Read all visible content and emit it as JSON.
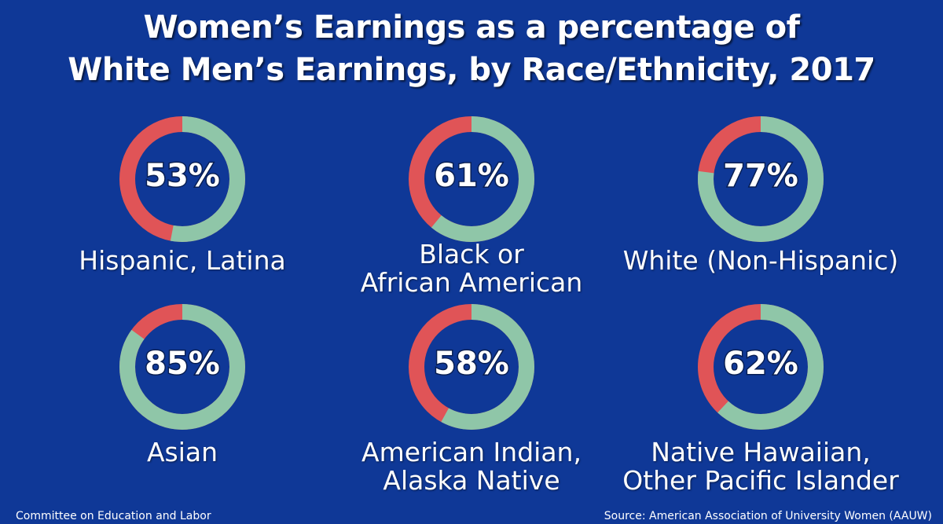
{
  "title": {
    "line1": "Women’s Earnings as a percentage of",
    "line2": "White Men’s Earnings, by Race/Ethnicity, 2017"
  },
  "colors": {
    "background": "#0f3897",
    "earned": "#8fc6a8",
    "gap": "#e05457"
  },
  "chart_data": [
    {
      "type": "pie",
      "style": "donut",
      "group": "Hispanic, Latina",
      "label_lines": [
        "Hispanic, Latina"
      ],
      "value": 53,
      "display": "53%"
    },
    {
      "type": "pie",
      "style": "donut",
      "group": "Black or African American",
      "label_lines": [
        "Black or",
        "African American"
      ],
      "value": 61,
      "display": "61%"
    },
    {
      "type": "pie",
      "style": "donut",
      "group": "White (Non-Hispanic)",
      "label_lines": [
        "White (Non-Hispanic)"
      ],
      "value": 77,
      "display": "77%"
    },
    {
      "type": "pie",
      "style": "donut",
      "group": "Asian",
      "label_lines": [
        "Asian"
      ],
      "value": 85,
      "display": "85%"
    },
    {
      "type": "pie",
      "style": "donut",
      "group": "American Indian, Alaska Native",
      "label_lines": [
        "American Indian,",
        "Alaska Native"
      ],
      "value": 58,
      "display": "58%"
    },
    {
      "type": "pie",
      "style": "donut",
      "group": "Native Hawaiian, Other Pacific Islander",
      "label_lines": [
        "Native Hawaiian,",
        "Other Pacific Islander"
      ],
      "value": 62,
      "display": "62%"
    }
  ],
  "footer": {
    "left": "Committee on Education and Labor",
    "right": "Source: American Association of University Women (AAUW)"
  }
}
